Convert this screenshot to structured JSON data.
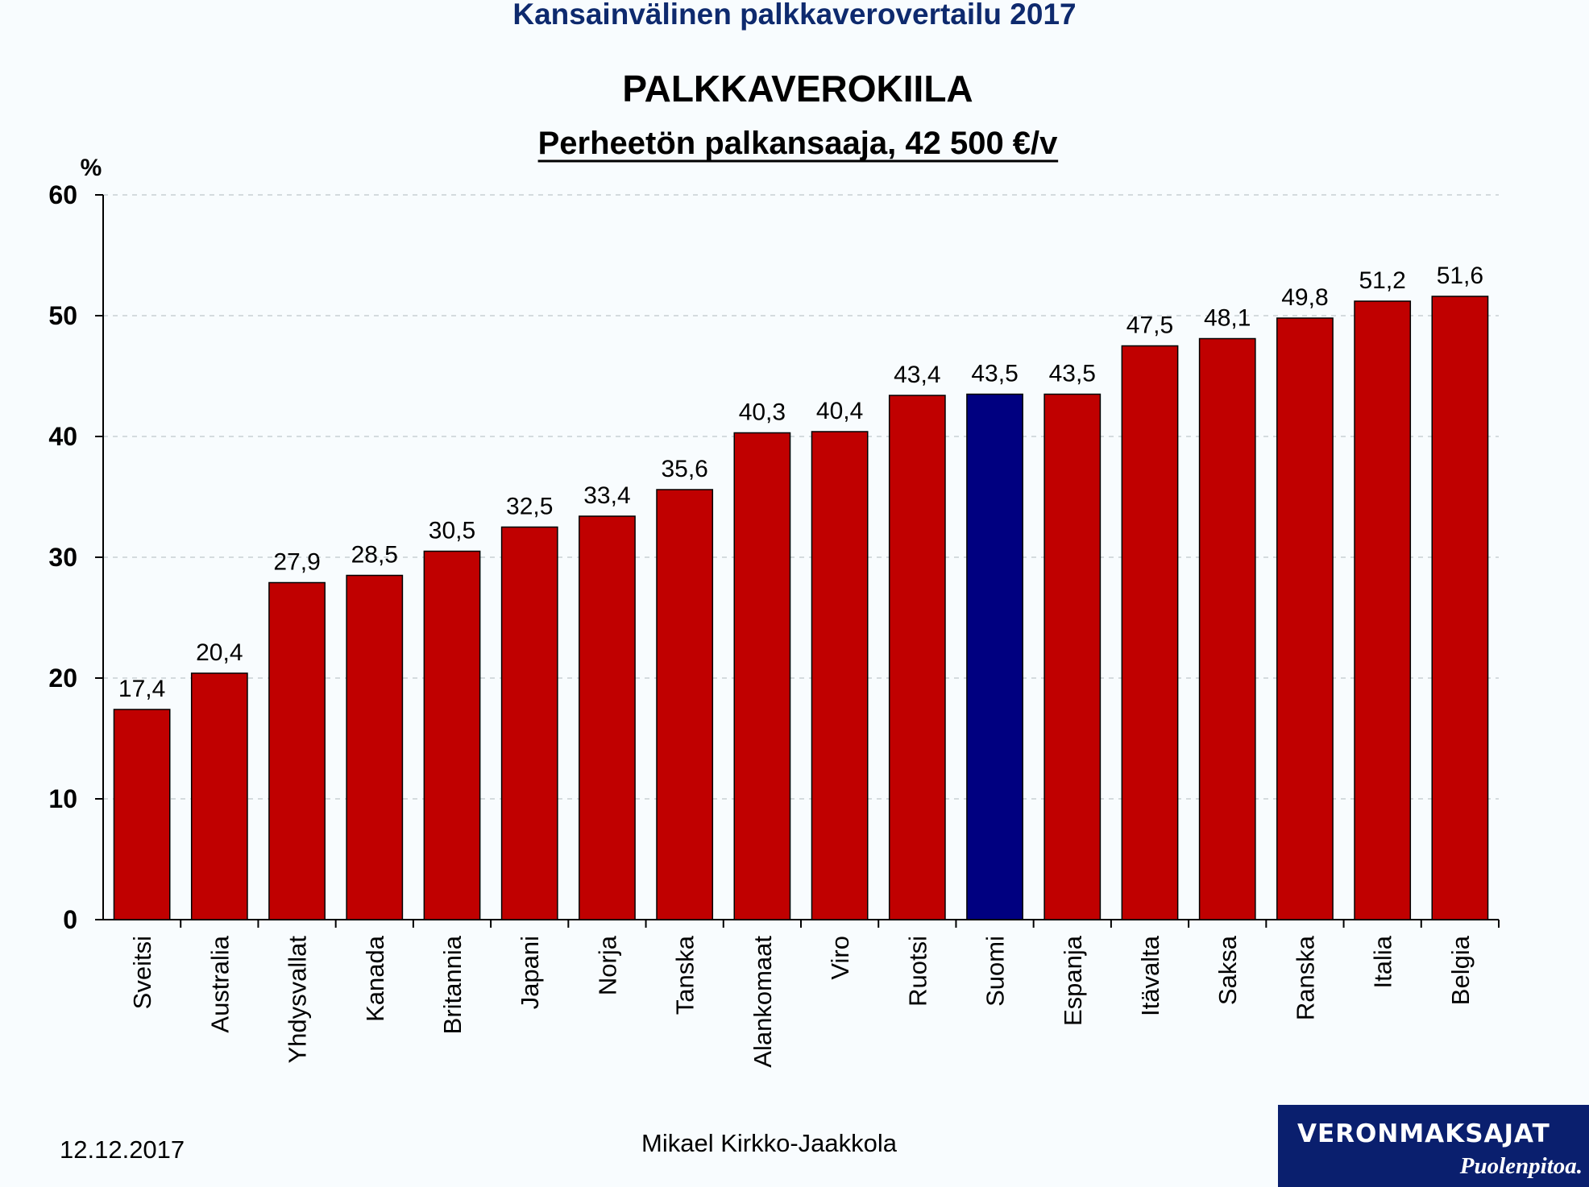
{
  "header": {
    "title": "Kansainvälinen palkkaverovertailu 2017"
  },
  "chart_data": {
    "type": "bar",
    "title": "PALKKAVEROKIILA",
    "subtitle": "Perheetön palkansaaja, 42 500 €/v",
    "ylabel": "%",
    "xlabel": "",
    "ylim": [
      0,
      60
    ],
    "yticks": [
      0,
      10,
      20,
      30,
      40,
      50,
      60
    ],
    "grid": true,
    "categories": [
      "Sveitsi",
      "Australia",
      "Yhdysvallat",
      "Kanada",
      "Britannia",
      "Japani",
      "Norja",
      "Tanska",
      "Alankomaat",
      "Viro",
      "Ruotsi",
      "Suomi",
      "Espanja",
      "Itävalta",
      "Saksa",
      "Ranska",
      "Italia",
      "Belgia"
    ],
    "values": [
      17.4,
      20.4,
      27.9,
      28.5,
      30.5,
      32.5,
      33.4,
      35.6,
      40.3,
      40.4,
      43.4,
      43.5,
      43.5,
      47.5,
      48.1,
      49.8,
      51.2,
      51.6
    ],
    "value_labels": [
      "17,4",
      "20,4",
      "27,9",
      "28,5",
      "30,5",
      "32,5",
      "33,4",
      "35,6",
      "40,3",
      "40,4",
      "43,4",
      "43,5",
      "43,5",
      "47,5",
      "48,1",
      "49,8",
      "51,2",
      "51,6"
    ],
    "colors": {
      "default": "#c00000",
      "highlight": "#000080"
    },
    "highlight_category": "Suomi"
  },
  "footer": {
    "date": "12.12.2017",
    "author": "Mikael Kirkko-Jaakkola"
  },
  "logo": {
    "name": "VERONMAKSAJAT",
    "tagline": "Puolenpitoa."
  }
}
